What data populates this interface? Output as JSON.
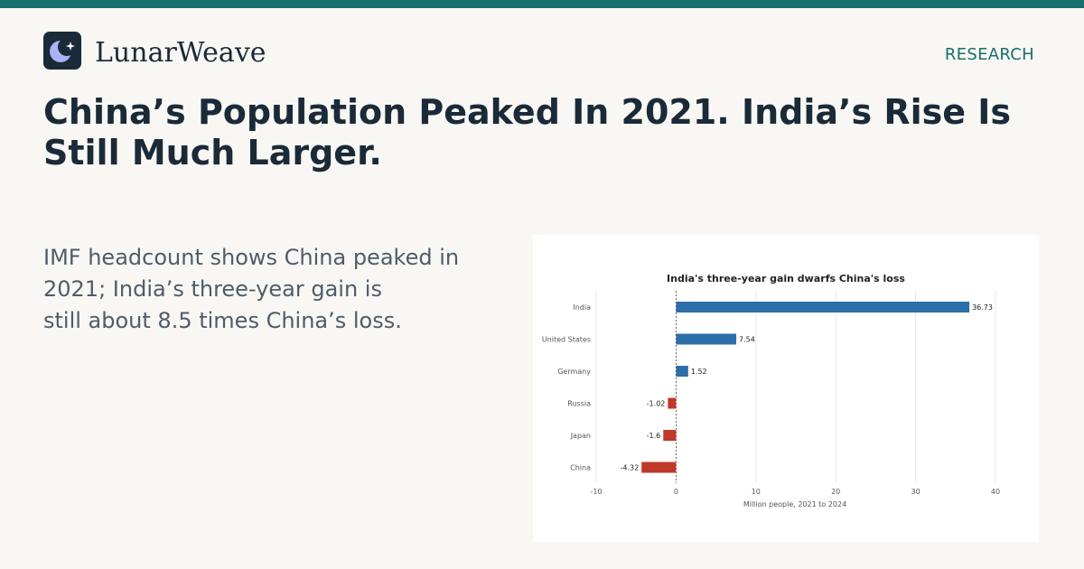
{
  "brand": {
    "name": "LunarWeave",
    "logo_icon": "moon-star-icon",
    "logo_colors": {
      "tile": "#1b2a38",
      "moon": "#a9b3f5",
      "star": "#ffffff"
    }
  },
  "section": "RESEARCH",
  "headline": "China’s Population Peaked In 2021. India’s Rise Is Still Much Larger.",
  "dek_lines": [
    "IMF headcount shows China peaked in",
    "2021; India’s three-year gain is",
    "still about 8.5 times China’s loss."
  ],
  "colors": {
    "accent": "#17706e",
    "text_dark": "#1b2a38",
    "background": "#f9f7f3",
    "bar_positive": "#2c6ea9",
    "bar_negative": "#c0392b"
  },
  "chart_data": {
    "type": "bar",
    "orientation": "horizontal",
    "title": "India's three-year gain dwarfs China's loss",
    "xlabel": "Million people, 2021 to 2024",
    "ylabel": "",
    "categories": [
      "India",
      "United States",
      "Germany",
      "Russia",
      "Japan",
      "China"
    ],
    "values": [
      36.73,
      7.54,
      1.52,
      -1.02,
      -1.6,
      -4.32
    ],
    "value_labels": [
      "36.73",
      "7.54",
      "1.52",
      "-1.02",
      "-1.6",
      "-4.32"
    ],
    "xlim": [
      -10,
      40
    ],
    "xticks": [
      -10,
      0,
      10,
      20,
      30,
      40
    ],
    "grid": "vertical",
    "zero_line": "dashed"
  }
}
